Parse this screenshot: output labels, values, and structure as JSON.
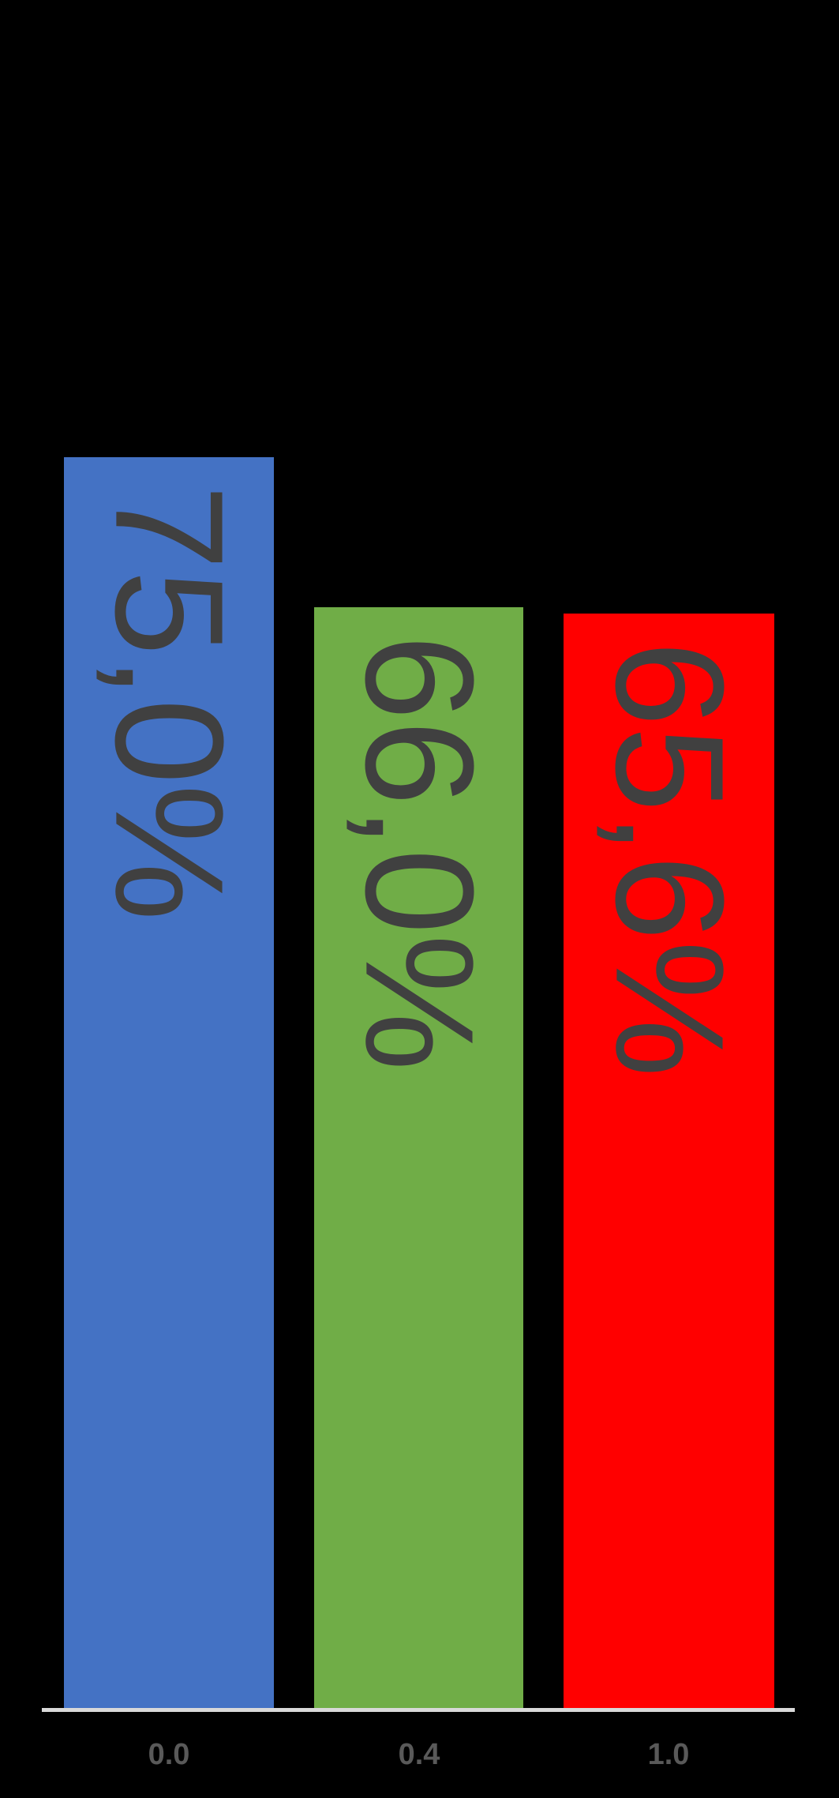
{
  "chart_data": {
    "type": "bar",
    "title": "",
    "xlabel": "",
    "ylabel": "",
    "categories": [
      "0.0",
      "0.4",
      "1.0"
    ],
    "values": [
      75.0,
      66.0,
      65.6
    ],
    "data_labels": [
      "75,0%",
      "66,0%",
      "65,6%"
    ],
    "data_label_rotation_deg": 90,
    "bar_colors": [
      "#4472C4",
      "#70AD47",
      "#FF0000"
    ],
    "background_color": "#000000",
    "axis_line_color": "#D9D9D9",
    "tick_label_color": "#595959",
    "data_label_color": "#404040",
    "ylim": [
      0,
      102.4
    ],
    "grid": false,
    "legend": false
  }
}
